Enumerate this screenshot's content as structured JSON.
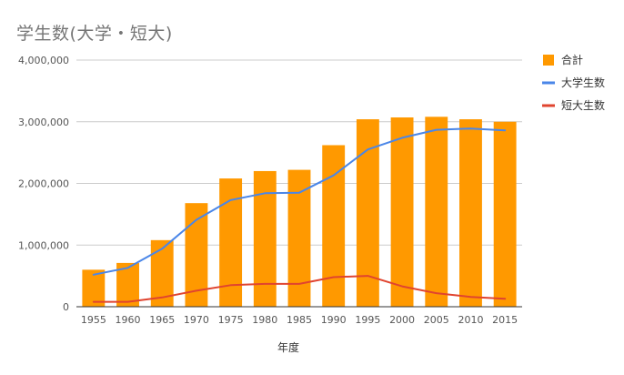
{
  "chart_data": {
    "type": "bar",
    "title": "学生数(大学・短大)",
    "xlabel": "年度",
    "ylabel": "",
    "categories": [
      "1955",
      "1960",
      "1965",
      "1970",
      "1975",
      "1980",
      "1985",
      "1990",
      "1995",
      "2000",
      "2005",
      "2010",
      "2015"
    ],
    "ylim": [
      0,
      4000000
    ],
    "yticks": [
      0,
      1000000,
      2000000,
      3000000,
      4000000
    ],
    "ytick_labels": [
      "0",
      "1,000,000",
      "2,000,000",
      "3,000,000",
      "4,000,000"
    ],
    "grid": true,
    "legend_position": "right",
    "series": [
      {
        "name": "合計",
        "kind": "bar",
        "color": "#ff9900",
        "values": [
          600000,
          710000,
          1080000,
          1680000,
          2080000,
          2200000,
          2220000,
          2620000,
          3040000,
          3070000,
          3080000,
          3040000,
          3000000
        ]
      },
      {
        "name": "大学生数",
        "kind": "line",
        "color": "#4a86e8",
        "values": [
          520000,
          630000,
          940000,
          1410000,
          1730000,
          1840000,
          1850000,
          2130000,
          2550000,
          2740000,
          2870000,
          2890000,
          2860000
        ]
      },
      {
        "name": "短大生数",
        "kind": "line",
        "color": "#e0442f",
        "values": [
          80000,
          80000,
          150000,
          260000,
          350000,
          370000,
          370000,
          480000,
          500000,
          330000,
          220000,
          160000,
          130000
        ]
      }
    ]
  }
}
